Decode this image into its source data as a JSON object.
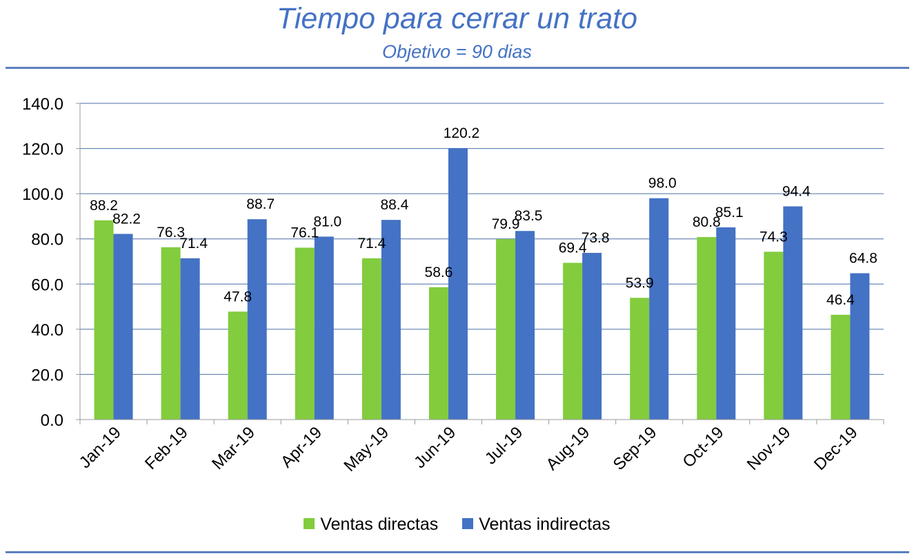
{
  "chart_data": {
    "type": "bar",
    "title": "Tiempo para cerrar un trato",
    "subtitle": "Objetivo = 90 dias",
    "xlabel": "",
    "ylabel": "",
    "ylim": [
      0,
      140
    ],
    "yticks": [
      "0.0",
      "20.0",
      "40.0",
      "60.0",
      "80.0",
      "100.0",
      "120.0",
      "140.0"
    ],
    "grid": true,
    "legend_position": "bottom",
    "categories": [
      "Jan-19",
      "Feb-19",
      "Mar-19",
      "Apr-19",
      "May-19",
      "Jun-19",
      "Jul-19",
      "Aug-19",
      "Sep-19",
      "Oct-19",
      "Nov-19",
      "Dec-19"
    ],
    "series": [
      {
        "name": "Ventas directas",
        "color": "#82CC3E",
        "values": [
          88.2,
          76.3,
          47.8,
          76.1,
          71.4,
          58.6,
          79.9,
          69.4,
          53.9,
          80.8,
          74.3,
          46.4
        ],
        "labels": [
          "88.2",
          "76.3",
          "47.8",
          "76.1",
          "71.4",
          "58.6",
          "79.9",
          "69.4",
          "53.9",
          "80.8",
          "74.3",
          "46.4"
        ]
      },
      {
        "name": "Ventas indirectas",
        "color": "#4472C4",
        "values": [
          82.2,
          71.4,
          88.7,
          81.0,
          88.4,
          120.2,
          83.5,
          73.8,
          98.0,
          85.1,
          94.4,
          64.8
        ],
        "labels": [
          "82.2",
          "71.4",
          "88.7",
          "81.0",
          "88.4",
          "120.2",
          "83.5",
          "73.8",
          "98.0",
          "85.1",
          "94.4",
          "64.8"
        ]
      }
    ]
  }
}
